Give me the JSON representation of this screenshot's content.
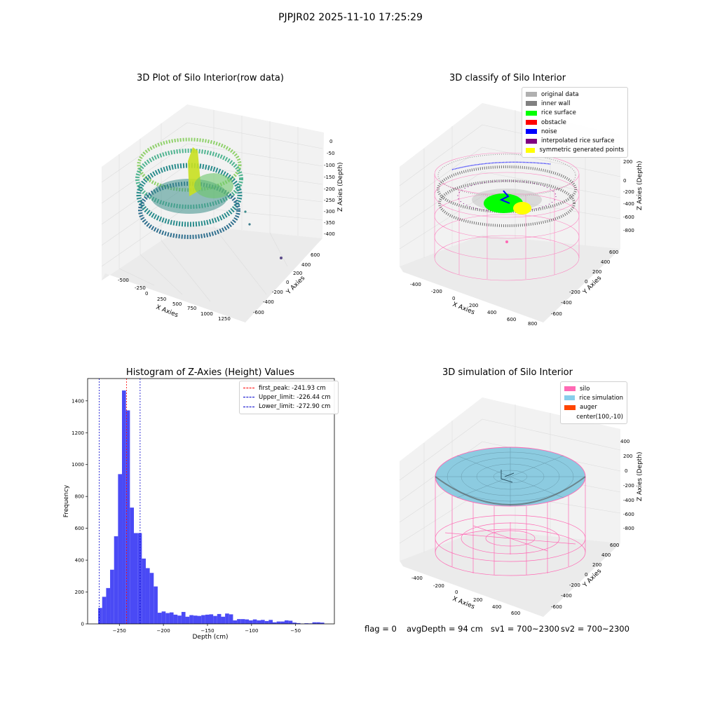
{
  "suptitle": "PJPJR02 2025-11-10 17:25:29",
  "colors": {
    "pink": "#ff66b3",
    "skyblue": "#87c6e0",
    "orangered": "#ff4500",
    "green": "#00ff00",
    "red": "#ff0000",
    "blue": "#0000ff",
    "purple": "#800080",
    "yellow": "#ffff00",
    "gray": "#b0b0b0",
    "darkgray": "#808080",
    "hist_bar": "#4a4af5"
  },
  "panel1": {
    "title": "3D Plot of Silo Interior(row data)",
    "xlabel": "X Axies",
    "ylabel": "Y Axies",
    "zlabel": "Z Axies (Depth)",
    "xticks": [
      "-500",
      "-250",
      "0",
      "250",
      "500",
      "750",
      "1000",
      "1250"
    ],
    "yticks": [
      "600",
      "400",
      "200",
      "0",
      "-200",
      "-400",
      "-600"
    ],
    "zticks": [
      "0",
      "-50",
      "-100",
      "-150",
      "-200",
      "-250",
      "-300",
      "-350",
      "-400"
    ]
  },
  "panel2": {
    "title": "3D classify of Silo Interior",
    "xlabel": "X Axies",
    "ylabel": "Y Axies",
    "zlabel": "Z Axies (Depth)",
    "xticks": [
      "-400",
      "-200",
      "0",
      "200",
      "400",
      "600",
      "800"
    ],
    "yticks": [
      "600",
      "400",
      "200",
      "0",
      "-200",
      "-400",
      "-600"
    ],
    "zticks": [
      "200",
      "0",
      "-200",
      "-400",
      "-600",
      "-800"
    ],
    "legend": [
      {
        "label": "original data",
        "color": "#b0b0b0"
      },
      {
        "label": "inner wall",
        "color": "#808080"
      },
      {
        "label": "rice surface",
        "color": "#00ff00"
      },
      {
        "label": "obstacle",
        "color": "#ff0000"
      },
      {
        "label": "noise",
        "color": "#0000ff"
      },
      {
        "label": "interpolated rice surface",
        "color": "#800080"
      },
      {
        "label": "symmetric generated points",
        "color": "#ffff00"
      }
    ]
  },
  "panel4": {
    "title": "3D simulation of Silo Interior",
    "xlabel": "X Axies",
    "ylabel": "Y Axies",
    "zlabel": "Z Axies (Depth)",
    "xticks": [
      "-400",
      "-200",
      "0",
      "200",
      "400",
      "600"
    ],
    "yticks": [
      "600",
      "400",
      "200",
      "0",
      "-200",
      "-400",
      "-600"
    ],
    "zticks": [
      "400",
      "200",
      "0",
      "-200",
      "-400",
      "-600",
      "-800"
    ],
    "legend": [
      {
        "label": "silo",
        "color": "#ff69b4"
      },
      {
        "label": "rice simulation",
        "color": "#87ceeb"
      },
      {
        "label": "auger",
        "color": "#ff4500"
      },
      {
        "label": "center(100,-10)",
        "color": ""
      }
    ]
  },
  "status": {
    "flag": "flag = 0",
    "avg_depth": "avgDepth = 94 cm",
    "sv1": "sv1 = 700~2300",
    "sv2": "sv2 = 700~2300"
  },
  "chart_data": {
    "type": "bar",
    "title": "Histogram of Z-Axies (Height) Values",
    "xlabel": "Depth (cm)",
    "ylabel": "Frequency",
    "xlim": [
      -286,
      -6
    ],
    "ylim": [
      0,
      1540
    ],
    "xticks": [
      -250,
      -200,
      -150,
      -100,
      -50
    ],
    "yticks": [
      0,
      200,
      400,
      600,
      800,
      1000,
      1200,
      1400
    ],
    "bin_width": 4.5,
    "bins": [
      [
        -274,
        100
      ],
      [
        -269.5,
        170
      ],
      [
        -265,
        225
      ],
      [
        -260.5,
        340
      ],
      [
        -256,
        550
      ],
      [
        -251.5,
        940
      ],
      [
        -247,
        1465
      ],
      [
        -242.5,
        1340
      ],
      [
        -238,
        730
      ],
      [
        -233.5,
        570
      ],
      [
        -229,
        570
      ],
      [
        -224.5,
        410
      ],
      [
        -220,
        350
      ],
      [
        -215.5,
        320
      ],
      [
        -211,
        235
      ],
      [
        -206.5,
        70
      ],
      [
        -202,
        78
      ],
      [
        -197.5,
        68
      ],
      [
        -193,
        72
      ],
      [
        -188.5,
        58
      ],
      [
        -184,
        52
      ],
      [
        -179.5,
        75
      ],
      [
        -175,
        45
      ],
      [
        -170.5,
        55
      ],
      [
        -166,
        52
      ],
      [
        -161.5,
        50
      ],
      [
        -157,
        55
      ],
      [
        -152.5,
        58
      ],
      [
        -148,
        60
      ],
      [
        -143.5,
        50
      ],
      [
        -139,
        62
      ],
      [
        -134.5,
        45
      ],
      [
        -130,
        65
      ],
      [
        -125.5,
        60
      ],
      [
        -121,
        22
      ],
      [
        -116.5,
        30
      ],
      [
        -112,
        30
      ],
      [
        -107.5,
        28
      ],
      [
        -103,
        22
      ],
      [
        -98.5,
        28
      ],
      [
        -94,
        22
      ],
      [
        -89.5,
        25
      ],
      [
        -85,
        18
      ],
      [
        -80.5,
        25
      ],
      [
        -76,
        10
      ],
      [
        -71.5,
        15
      ],
      [
        -67,
        15
      ],
      [
        -62.5,
        22
      ],
      [
        -58,
        20
      ],
      [
        -53.5,
        8
      ],
      [
        -49,
        5
      ],
      [
        -44.5,
        2
      ],
      [
        -40,
        4
      ],
      [
        -35.5,
        3
      ],
      [
        -31,
        10
      ],
      [
        -26.5,
        10
      ],
      [
        -22,
        8
      ]
    ],
    "vlines": [
      {
        "x": -241.93,
        "label": "first_peak: -241.93 cm",
        "color": "#ff0000"
      },
      {
        "x": -226.44,
        "label": "Upper_limit: -226.44 cm",
        "color": "#0000cc"
      },
      {
        "x": -272.9,
        "label": "Lower_limit: -272.90 cm",
        "color": "#0000cc"
      }
    ]
  }
}
